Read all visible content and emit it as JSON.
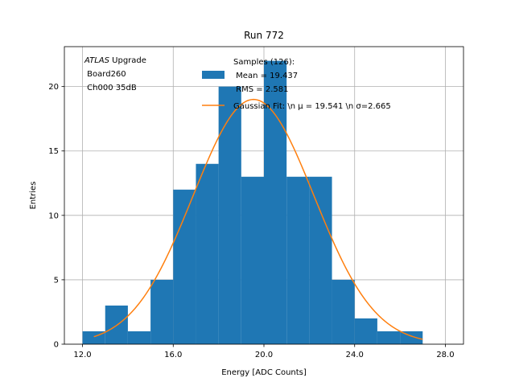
{
  "chart_data": {
    "type": "bar",
    "title": "Run 772",
    "xlabel": "Energy [ADC Counts]",
    "ylabel": "Entries",
    "xlim": [
      11.2,
      28.8
    ],
    "ylim": [
      0,
      23.1
    ],
    "grid": true,
    "x_ticks": [
      12.0,
      16.0,
      20.0,
      24.0,
      28.0
    ],
    "x_tick_labels": [
      "12.0",
      "16.0",
      "20.0",
      "24.0",
      "28.0"
    ],
    "y_ticks": [
      0,
      5,
      10,
      15,
      20
    ],
    "y_tick_labels": [
      "0",
      "5",
      "10",
      "15",
      "20"
    ],
    "histogram": {
      "name": "Samples (126):\n Mean = 19.437\n RMS = 2.581",
      "color": "#1f77b4",
      "bin_edges": [
        12.0,
        13.0,
        14.0,
        15.0,
        16.0,
        17.0,
        18.0,
        19.0,
        20.0,
        21.0,
        22.0,
        23.0,
        24.0,
        25.0,
        26.0,
        27.0
      ],
      "counts": [
        1,
        3,
        1,
        5,
        12,
        14,
        20,
        13,
        22,
        13,
        13,
        5,
        2,
        1,
        1
      ]
    },
    "fit": {
      "name": "Gaussian Fit: \\n μ = 19.541 \\n σ=2.665",
      "color": "#ff7f0e",
      "amplitude": 19.0,
      "mu": 19.541,
      "sigma": 2.665,
      "x_range": [
        12.5,
        27.0
      ]
    },
    "legend_position": "top-right",
    "annotation": {
      "atlas": "ATLAS",
      "line1_rest": " Upgrade",
      "line2": " Board260",
      "line3": " Ch000 35dB"
    }
  }
}
